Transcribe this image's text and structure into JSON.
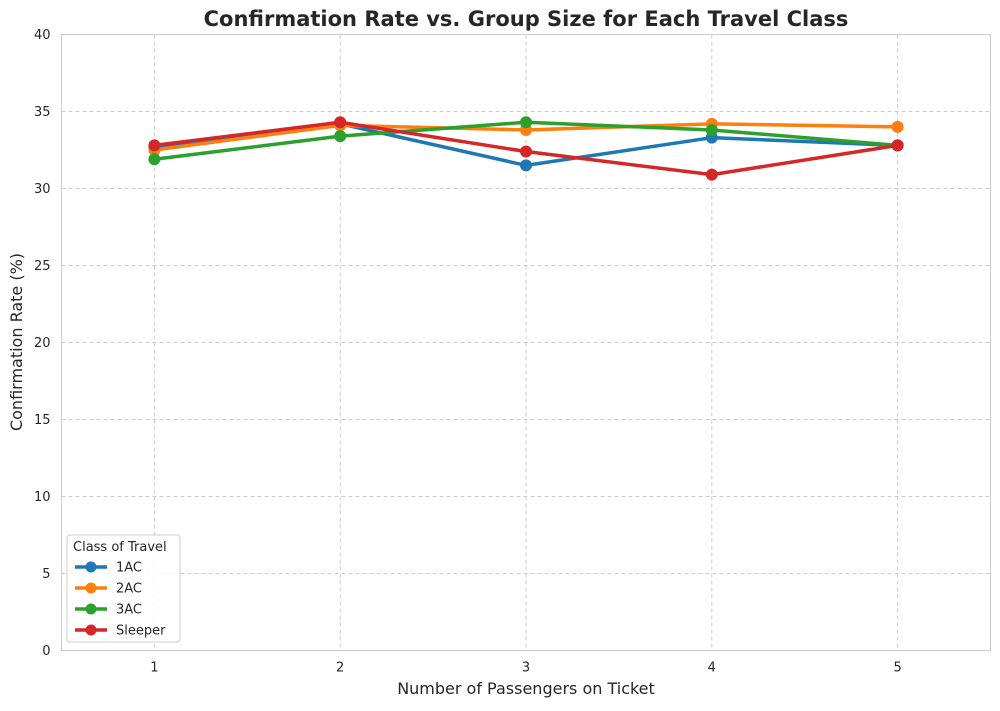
{
  "chart_data": {
    "type": "line",
    "title": "Confirmation Rate vs. Group Size for Each Travel Class",
    "xlabel": "Number of Passengers on Ticket",
    "ylabel": "Confirmation Rate (%)",
    "x": [
      1,
      2,
      3,
      4,
      5
    ],
    "x_tick_labels": [
      "1",
      "2",
      "3",
      "4",
      "5"
    ],
    "xlim": [
      0.5,
      5.5
    ],
    "ylim": [
      0,
      40
    ],
    "y_ticks": [
      0,
      5,
      10,
      15,
      20,
      25,
      30,
      35,
      40
    ],
    "y_tick_labels": [
      "0",
      "5",
      "10",
      "15",
      "20",
      "25",
      "30",
      "35",
      "40"
    ],
    "grid": true,
    "legend": {
      "title": "Class of Travel",
      "placement": "lower-left"
    },
    "series": [
      {
        "name": "1AC",
        "color": "#1f77b4",
        "values": [
          32.7,
          34.2,
          31.5,
          33.3,
          32.8
        ]
      },
      {
        "name": "2AC",
        "color": "#ff7f0e",
        "values": [
          32.5,
          34.1,
          33.8,
          34.2,
          34.0
        ]
      },
      {
        "name": "3AC",
        "color": "#2ca02c",
        "values": [
          31.9,
          33.4,
          34.3,
          33.8,
          32.8
        ]
      },
      {
        "name": "Sleeper",
        "color": "#d62728",
        "values": [
          32.8,
          34.3,
          32.4,
          30.9,
          32.8
        ]
      }
    ]
  }
}
